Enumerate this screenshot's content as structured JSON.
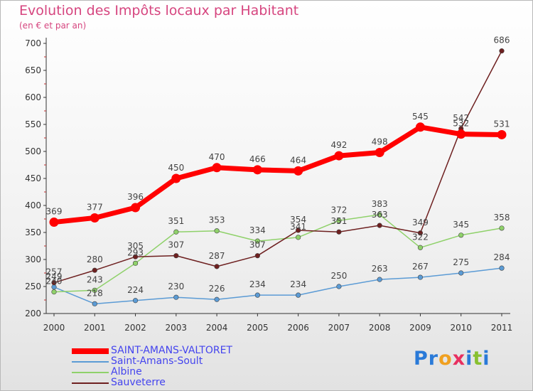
{
  "title": "Evolution des Impôts locaux par Habitant",
  "subtitle": "(en € et par an)",
  "logo": {
    "letters": [
      "P",
      "r",
      "o",
      "x",
      "i",
      "t",
      "i"
    ],
    "colors": [
      "#2a7ad8",
      "#2a7ad8",
      "#f0a020",
      "#e83060",
      "#2a7ad8",
      "#88c030",
      "#2a7ad8"
    ]
  },
  "chart_data": {
    "type": "line",
    "categories": [
      "2000",
      "2001",
      "2002",
      "2003",
      "2004",
      "2005",
      "2006",
      "2007",
      "2008",
      "2009",
      "2010",
      "2011"
    ],
    "y_ticks": [
      "200",
      "250",
      "300",
      "350",
      "400",
      "450",
      "500",
      "550",
      "600",
      "650",
      "700"
    ],
    "ylim": [
      200,
      700
    ],
    "grid": false,
    "legend_position": "bottom-left",
    "series": [
      {
        "name": "SAINT-AMANS-VALTORET",
        "color": "#ff0000",
        "highlight": true,
        "values": [
          369,
          377,
          396,
          450,
          470,
          466,
          464,
          492,
          498,
          545,
          532,
          531
        ],
        "labels": [
          "369",
          "377",
          "396",
          "450",
          "470",
          "466",
          "464",
          "492",
          "498",
          "545",
          "532",
          "531"
        ]
      },
      {
        "name": "Saint-Amans-Soult",
        "color": "#5b9bd5",
        "values": [
          249,
          218,
          224,
          230,
          226,
          234,
          234,
          250,
          263,
          267,
          275,
          284
        ],
        "labels": [
          "249",
          "218",
          "224",
          "230",
          "226",
          "234",
          "234",
          "250",
          "263",
          "267",
          "275",
          "284"
        ]
      },
      {
        "name": "Albine",
        "color": "#8fd16a",
        "values": [
          240,
          243,
          293,
          351,
          353,
          334,
          341,
          372,
          383,
          322,
          345,
          358
        ],
        "labels": [
          "240",
          "243",
          "293",
          "351",
          "353",
          "334",
          "341",
          "372",
          "383",
          "322",
          "345",
          "358"
        ]
      },
      {
        "name": "Sauveterre",
        "color": "#6e2020",
        "values": [
          257,
          280,
          305,
          307,
          287,
          307,
          354,
          351,
          363,
          349,
          542,
          686
        ],
        "labels": [
          "257",
          "280",
          "305",
          "307",
          "287",
          "307",
          "354",
          "351",
          "363",
          "349",
          "542",
          "686"
        ]
      }
    ]
  }
}
